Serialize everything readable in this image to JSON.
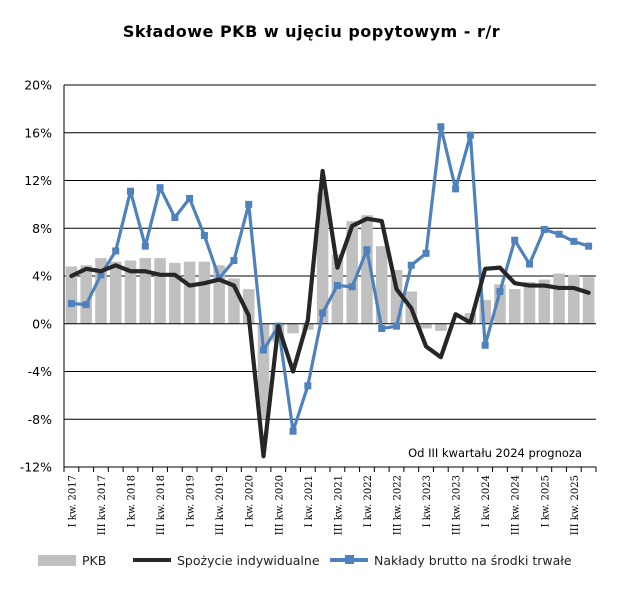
{
  "chart_data": {
    "type": "bar+line",
    "title": "Składowe PKB w ujęciu popytowym - r/r",
    "annotation": "Od III kwartału 2024 prognoza",
    "y_ticks": [
      "20%",
      "16%",
      "12%",
      "8%",
      "4%",
      "0%",
      "-4%",
      "-8%",
      "-12%"
    ],
    "ylim": [
      -12,
      20
    ],
    "x_labels": [
      "I kw. 2017",
      "III kw. 2017",
      "I kw. 2018",
      "III kw. 2018",
      "I kw. 2019",
      "III kw. 2019",
      "I kw. 2020",
      "III kw. 2020",
      "I kw. 2021",
      "III kw. 2021",
      "I kw. 2022",
      "III kw. 2022",
      "I kw. 2023",
      "III kw. 2023",
      "I kw. 2024",
      "III kw. 2024",
      "I kw. 2025",
      "III kw. 2025"
    ],
    "quarter_count": 36,
    "legend_position": "bottom",
    "series": [
      {
        "name": "PKB",
        "kind": "bar",
        "color": "#c0c0c0",
        "values": [
          4.8,
          4.9,
          5.5,
          5.2,
          5.3,
          5.5,
          5.5,
          5.1,
          5.2,
          5.2,
          4.9,
          3.8,
          2.9,
          -8.0,
          -1.5,
          -0.8,
          -0.5,
          11.0,
          5.8,
          8.6,
          9.1,
          6.5,
          4.5,
          2.7,
          -0.4,
          -0.6,
          0.1,
          0.9,
          2.0,
          3.3,
          2.9,
          3.5,
          3.7,
          4.2,
          4.1,
          3.9
        ]
      },
      {
        "name": "Spożycie indywidualne",
        "kind": "line",
        "color": "#262626",
        "values": [
          4.0,
          4.6,
          4.4,
          4.9,
          4.4,
          4.4,
          4.1,
          4.1,
          3.2,
          3.4,
          3.7,
          3.2,
          0.7,
          -11.1,
          -0.2,
          -4.0,
          0.3,
          12.8,
          4.7,
          8.2,
          8.8,
          8.6,
          2.9,
          1.3,
          -1.9,
          -2.8,
          0.8,
          0.1,
          4.6,
          4.7,
          3.4,
          3.2,
          3.2,
          3.0,
          3.0,
          2.6
        ]
      },
      {
        "name": "Nakłady brutto na środki trwałe",
        "kind": "line",
        "color": "#4f81bd",
        "values": [
          1.7,
          1.6,
          4.1,
          6.1,
          11.1,
          6.5,
          11.4,
          8.9,
          10.5,
          7.4,
          3.8,
          5.3,
          10.0,
          -2.2,
          -0.2,
          -9.0,
          -5.2,
          0.9,
          3.2,
          3.1,
          6.2,
          -0.4,
          -0.2,
          4.9,
          5.9,
          16.5,
          11.3,
          15.8,
          -1.8,
          2.7,
          7.0,
          5.0,
          7.9,
          7.5,
          6.9,
          6.5
        ]
      }
    ]
  }
}
